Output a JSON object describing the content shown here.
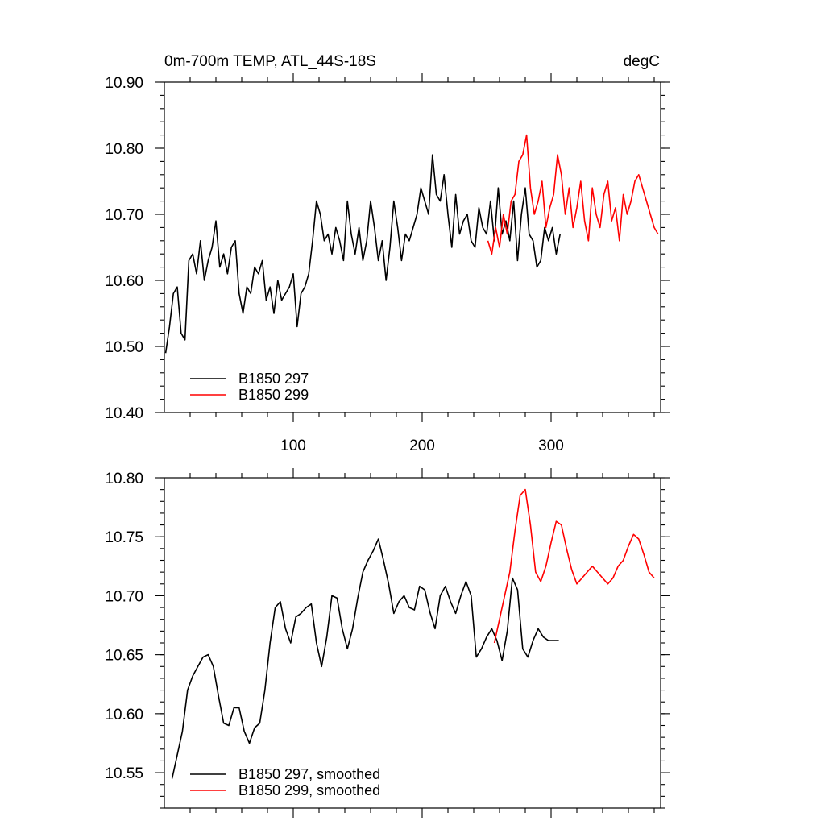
{
  "chart_data": [
    {
      "type": "line",
      "title": "0m-700m TEMP, ATL_44S-18S",
      "units": "degC",
      "xlim": [
        0,
        385
      ],
      "ylim": [
        10.4,
        10.9
      ],
      "yticks": [
        "10.40",
        "10.50",
        "10.60",
        "10.70",
        "10.80",
        "10.90"
      ],
      "xticks": [
        "100",
        "200",
        "300"
      ],
      "legend_position": "bottom-left",
      "series": [
        {
          "name": "B1850 297",
          "color": "#000000",
          "x": [
            1,
            4,
            7,
            10,
            13,
            16,
            19,
            22,
            25,
            28,
            31,
            34,
            37,
            40,
            43,
            46,
            49,
            52,
            55,
            58,
            61,
            64,
            67,
            70,
            73,
            76,
            79,
            82,
            85,
            88,
            91,
            94,
            97,
            100,
            103,
            106,
            109,
            112,
            115,
            118,
            121,
            124,
            127,
            130,
            133,
            136,
            139,
            142,
            145,
            148,
            151,
            154,
            157,
            160,
            163,
            166,
            169,
            172,
            175,
            178,
            181,
            184,
            187,
            190,
            193,
            196,
            199,
            202,
            205,
            208,
            211,
            214,
            217,
            220,
            223,
            226,
            229,
            232,
            235,
            238,
            241,
            244,
            247,
            250,
            253,
            256,
            259,
            262,
            265,
            268,
            271,
            274,
            277,
            280,
            283,
            286,
            289,
            292,
            295,
            298,
            301,
            304,
            307
          ],
          "values": [
            10.49,
            10.53,
            10.58,
            10.59,
            10.52,
            10.51,
            10.63,
            10.64,
            10.61,
            10.66,
            10.6,
            10.63,
            10.65,
            10.69,
            10.62,
            10.64,
            10.61,
            10.65,
            10.66,
            10.58,
            10.55,
            10.59,
            10.58,
            10.62,
            10.61,
            10.63,
            10.57,
            10.59,
            10.55,
            10.6,
            10.57,
            10.58,
            10.59,
            10.61,
            10.53,
            10.58,
            10.59,
            10.61,
            10.66,
            10.72,
            10.7,
            10.66,
            10.67,
            10.64,
            10.68,
            10.66,
            10.63,
            10.72,
            10.67,
            10.64,
            10.68,
            10.63,
            10.66,
            10.72,
            10.68,
            10.63,
            10.66,
            10.6,
            10.65,
            10.72,
            10.68,
            10.63,
            10.67,
            10.66,
            10.68,
            10.7,
            10.74,
            10.72,
            10.7,
            10.79,
            10.73,
            10.72,
            10.76,
            10.7,
            10.65,
            10.73,
            10.67,
            10.69,
            10.7,
            10.66,
            10.65,
            10.71,
            10.68,
            10.67,
            10.72,
            10.66,
            10.74,
            10.67,
            10.69,
            10.66,
            10.72,
            10.63,
            10.7,
            10.74,
            10.67,
            10.66,
            10.62,
            10.63,
            10.68,
            10.66,
            10.68,
            10.64,
            10.67
          ]
        },
        {
          "name": "B1850 299",
          "color": "#ff0000",
          "x": [
            251,
            254,
            257,
            260,
            263,
            266,
            269,
            272,
            275,
            278,
            281,
            284,
            287,
            290,
            293,
            296,
            299,
            302,
            305,
            308,
            311,
            314,
            317,
            320,
            323,
            326,
            329,
            332,
            335,
            338,
            341,
            344,
            347,
            350,
            353,
            356,
            359,
            362,
            365,
            368,
            371,
            374,
            377,
            380,
            383
          ],
          "values": [
            10.66,
            10.64,
            10.68,
            10.65,
            10.7,
            10.67,
            10.72,
            10.73,
            10.78,
            10.79,
            10.82,
            10.74,
            10.7,
            10.72,
            10.75,
            10.68,
            10.71,
            10.73,
            10.79,
            10.76,
            10.7,
            10.74,
            10.68,
            10.71,
            10.75,
            10.69,
            10.66,
            10.74,
            10.7,
            10.68,
            10.73,
            10.75,
            10.69,
            10.71,
            10.66,
            10.73,
            10.7,
            10.72,
            10.75,
            10.76,
            10.74,
            10.72,
            10.7,
            10.68,
            10.67
          ]
        }
      ]
    },
    {
      "type": "line",
      "title": "",
      "units": "",
      "xlim": [
        0,
        385
      ],
      "ylim": [
        10.52,
        10.8
      ],
      "yticks": [
        "10.55",
        "10.60",
        "10.65",
        "10.70",
        "10.75",
        "10.80"
      ],
      "xticks": [],
      "legend_position": "bottom-left",
      "series": [
        {
          "name": "B1850 297, smoothed",
          "color": "#000000",
          "x": [
            6,
            10,
            14,
            18,
            22,
            26,
            30,
            34,
            38,
            42,
            46,
            50,
            54,
            58,
            62,
            66,
            70,
            74,
            78,
            82,
            86,
            90,
            94,
            98,
            102,
            106,
            110,
            114,
            118,
            122,
            126,
            130,
            134,
            138,
            142,
            146,
            150,
            154,
            158,
            162,
            166,
            170,
            174,
            178,
            182,
            186,
            190,
            194,
            198,
            202,
            206,
            210,
            214,
            218,
            222,
            226,
            230,
            234,
            238,
            242,
            246,
            250,
            254,
            258,
            262,
            266,
            270,
            274,
            278,
            282,
            286,
            290,
            294,
            298,
            302,
            306
          ],
          "values": [
            10.545,
            10.565,
            10.585,
            10.62,
            10.632,
            10.64,
            10.648,
            10.65,
            10.64,
            10.615,
            10.592,
            10.59,
            10.605,
            10.605,
            10.585,
            10.575,
            10.588,
            10.592,
            10.62,
            10.66,
            10.69,
            10.695,
            10.672,
            10.66,
            10.682,
            10.685,
            10.69,
            10.693,
            10.66,
            10.64,
            10.665,
            10.7,
            10.698,
            10.672,
            10.655,
            10.672,
            10.698,
            10.72,
            10.73,
            10.738,
            10.748,
            10.73,
            10.71,
            10.685,
            10.695,
            10.7,
            10.69,
            10.688,
            10.708,
            10.705,
            10.686,
            10.672,
            10.7,
            10.708,
            10.695,
            10.685,
            10.7,
            10.712,
            10.7,
            10.648,
            10.655,
            10.665,
            10.672,
            10.662,
            10.645,
            10.67,
            10.715,
            10.705,
            10.655,
            10.648,
            10.662,
            10.672,
            10.665,
            10.662,
            10.662,
            10.662
          ]
        },
        {
          "name": "B1850 299, smoothed",
          "color": "#ff0000",
          "x": [
            256,
            260,
            264,
            268,
            272,
            276,
            280,
            284,
            288,
            292,
            296,
            300,
            304,
            308,
            312,
            316,
            320,
            324,
            328,
            332,
            336,
            340,
            344,
            348,
            352,
            356,
            360,
            364,
            368,
            372,
            376,
            380
          ],
          "values": [
            10.66,
            10.68,
            10.7,
            10.72,
            10.755,
            10.785,
            10.79,
            10.76,
            10.72,
            10.712,
            10.725,
            10.745,
            10.763,
            10.76,
            10.74,
            10.722,
            10.71,
            10.715,
            10.72,
            10.725,
            10.72,
            10.715,
            10.71,
            10.715,
            10.725,
            10.73,
            10.742,
            10.752,
            10.748,
            10.735,
            10.72,
            10.715
          ]
        }
      ]
    }
  ]
}
